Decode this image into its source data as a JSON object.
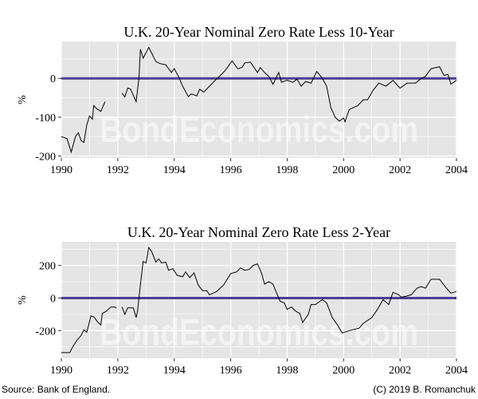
{
  "colors": {
    "panel": "#e5e5e5",
    "grid": "#ffffff",
    "zero_line": "#4b3f93",
    "series": "#000000"
  },
  "watermark": "BondEconomics.com",
  "footer": {
    "source": "Source: Bank of England.",
    "copyright": "(C) 2019 B. Romanchuk"
  },
  "chart_data": [
    {
      "type": "line",
      "title": "U.K. 20-Year Nominal Zero Rate Less 10-Year",
      "ylabel": "%",
      "xlim": [
        1990,
        2004
      ],
      "ylim": [
        -205,
        95
      ],
      "xticks": [
        1990,
        1992,
        1994,
        1996,
        1998,
        2000,
        2002,
        2004
      ],
      "yticks": [
        -200,
        -100,
        0
      ],
      "grid": true,
      "reference_line": 0,
      "segments": [
        [
          [
            1990.0,
            -150
          ],
          [
            1990.2,
            -155
          ],
          [
            1990.35,
            -190
          ],
          [
            1990.5,
            -150
          ],
          [
            1990.6,
            -140
          ],
          [
            1990.7,
            -160
          ],
          [
            1990.8,
            -165
          ],
          [
            1990.9,
            -120
          ],
          [
            1991.0,
            -97
          ],
          [
            1991.1,
            -105
          ],
          [
            1991.15,
            -70
          ],
          [
            1991.25,
            -78
          ],
          [
            1991.4,
            -85
          ],
          [
            1991.55,
            -60
          ]
        ],
        [
          [
            1992.15,
            -38
          ],
          [
            1992.25,
            -48
          ],
          [
            1992.35,
            -25
          ],
          [
            1992.45,
            -27
          ],
          [
            1992.65,
            -60
          ],
          [
            1992.75,
            0
          ],
          [
            1992.8,
            75
          ],
          [
            1992.9,
            52
          ],
          [
            1993.1,
            80
          ],
          [
            1993.2,
            65
          ],
          [
            1993.35,
            43
          ],
          [
            1993.5,
            38
          ],
          [
            1993.7,
            35
          ],
          [
            1993.9,
            15
          ],
          [
            1994.0,
            25
          ],
          [
            1994.15,
            5
          ],
          [
            1994.3,
            -20
          ],
          [
            1994.5,
            -47
          ],
          [
            1994.6,
            -40
          ],
          [
            1994.8,
            -45
          ],
          [
            1994.9,
            -28
          ],
          [
            1995.05,
            -35
          ],
          [
            1995.25,
            -20
          ],
          [
            1995.45,
            -5
          ],
          [
            1995.6,
            5
          ],
          [
            1995.8,
            20
          ],
          [
            1996.05,
            45
          ],
          [
            1996.25,
            25
          ],
          [
            1996.4,
            28
          ],
          [
            1996.5,
            40
          ],
          [
            1996.7,
            42
          ],
          [
            1996.95,
            15
          ],
          [
            1997.05,
            28
          ],
          [
            1997.2,
            15
          ],
          [
            1997.35,
            5
          ],
          [
            1997.5,
            -15
          ],
          [
            1997.7,
            15
          ],
          [
            1997.8,
            -10
          ],
          [
            1998.0,
            -5
          ],
          [
            1998.2,
            -10
          ],
          [
            1998.35,
            -2
          ],
          [
            1998.5,
            -20
          ],
          [
            1998.65,
            -8
          ],
          [
            1998.85,
            -12
          ],
          [
            1999.05,
            18
          ],
          [
            1999.25,
            0
          ],
          [
            1999.4,
            -20
          ],
          [
            1999.55,
            -75
          ],
          [
            1999.7,
            -100
          ],
          [
            1999.85,
            -110
          ],
          [
            2000.0,
            -102
          ],
          [
            2000.05,
            -112
          ],
          [
            2000.2,
            -80
          ],
          [
            2000.5,
            -70
          ],
          [
            2000.7,
            -55
          ],
          [
            2000.85,
            -55
          ],
          [
            2001.05,
            -30
          ],
          [
            2001.25,
            -12
          ],
          [
            2001.5,
            -20
          ],
          [
            2001.75,
            -5
          ],
          [
            2002.0,
            -25
          ],
          [
            2002.25,
            -12
          ],
          [
            2002.55,
            -12
          ],
          [
            2002.75,
            0
          ],
          [
            2002.9,
            5
          ],
          [
            2003.1,
            25
          ],
          [
            2003.4,
            30
          ],
          [
            2003.55,
            8
          ],
          [
            2003.7,
            10
          ],
          [
            2003.8,
            -15
          ],
          [
            2004.0,
            -5
          ]
        ]
      ]
    },
    {
      "type": "line",
      "title": "U.K. 20-Year Nominal Zero Rate Less 2-Year",
      "ylabel": "%",
      "xlim": [
        1990,
        2004
      ],
      "ylim": [
        -370,
        345
      ],
      "xticks": [
        1990,
        1992,
        1994,
        1996,
        1998,
        2000,
        2002,
        2004
      ],
      "yticks": [
        -200,
        0,
        200
      ],
      "grid": true,
      "reference_line": 0,
      "segments": [
        [
          [
            1990.0,
            -335
          ],
          [
            1990.3,
            -335
          ],
          [
            1990.4,
            -300
          ],
          [
            1990.55,
            -260
          ],
          [
            1990.7,
            -230
          ],
          [
            1990.8,
            -195
          ],
          [
            1990.9,
            -210
          ],
          [
            1991.05,
            -110
          ],
          [
            1991.15,
            -115
          ],
          [
            1991.3,
            -150
          ],
          [
            1991.4,
            -165
          ],
          [
            1991.45,
            -95
          ],
          [
            1991.6,
            -80
          ],
          [
            1991.75,
            -55
          ],
          [
            1991.9,
            -55
          ],
          [
            1991.95,
            -62
          ]
        ],
        [
          [
            1992.15,
            -55
          ],
          [
            1992.25,
            -100
          ],
          [
            1992.35,
            -60
          ],
          [
            1992.55,
            -60
          ],
          [
            1992.65,
            -120
          ],
          [
            1992.7,
            -80
          ],
          [
            1992.8,
            80
          ],
          [
            1992.9,
            225
          ],
          [
            1993.0,
            215
          ],
          [
            1993.1,
            310
          ],
          [
            1993.2,
            285
          ],
          [
            1993.35,
            220
          ],
          [
            1993.45,
            240
          ],
          [
            1993.55,
            215
          ],
          [
            1993.7,
            220
          ],
          [
            1993.8,
            170
          ],
          [
            1993.95,
            180
          ],
          [
            1994.1,
            140
          ],
          [
            1994.3,
            130
          ],
          [
            1994.4,
            160
          ],
          [
            1994.55,
            125
          ],
          [
            1994.7,
            155
          ],
          [
            1994.85,
            80
          ],
          [
            1995.0,
            45
          ],
          [
            1995.15,
            45
          ],
          [
            1995.25,
            20
          ],
          [
            1995.5,
            40
          ],
          [
            1995.75,
            80
          ],
          [
            1996.0,
            150
          ],
          [
            1996.2,
            160
          ],
          [
            1996.35,
            185
          ],
          [
            1996.5,
            170
          ],
          [
            1996.65,
            175
          ],
          [
            1996.8,
            200
          ],
          [
            1996.95,
            210
          ],
          [
            1997.1,
            150
          ],
          [
            1997.2,
            85
          ],
          [
            1997.35,
            100
          ],
          [
            1997.5,
            85
          ],
          [
            1997.6,
            40
          ],
          [
            1997.75,
            -20
          ],
          [
            1997.9,
            -30
          ],
          [
            1998.0,
            -70
          ],
          [
            1998.15,
            -55
          ],
          [
            1998.3,
            -80
          ],
          [
            1998.45,
            -95
          ],
          [
            1998.55,
            -150
          ],
          [
            1998.75,
            -100
          ],
          [
            1998.85,
            -40
          ],
          [
            1999.0,
            -40
          ],
          [
            1999.25,
            -10
          ],
          [
            1999.4,
            -30
          ],
          [
            1999.6,
            -120
          ],
          [
            1999.8,
            -170
          ],
          [
            1999.95,
            -215
          ],
          [
            2000.2,
            -200
          ],
          [
            2000.55,
            -185
          ],
          [
            2000.7,
            -155
          ],
          [
            2001.0,
            -120
          ],
          [
            2001.2,
            -70
          ],
          [
            2001.4,
            -10
          ],
          [
            2001.6,
            -40
          ],
          [
            2001.75,
            35
          ],
          [
            2001.95,
            20
          ],
          [
            2002.05,
            5
          ],
          [
            2002.2,
            10
          ],
          [
            2002.4,
            20
          ],
          [
            2002.6,
            60
          ],
          [
            2002.75,
            70
          ],
          [
            2002.9,
            60
          ],
          [
            2003.1,
            115
          ],
          [
            2003.4,
            115
          ],
          [
            2003.6,
            70
          ],
          [
            2003.8,
            30
          ],
          [
            2004.0,
            40
          ]
        ]
      ]
    }
  ]
}
